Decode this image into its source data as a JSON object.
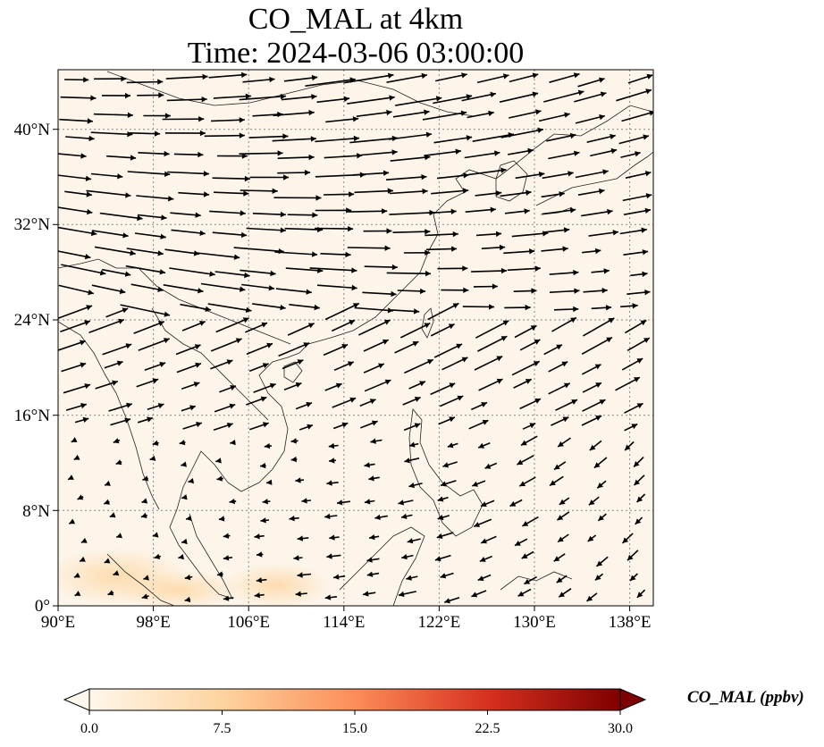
{
  "title": {
    "line1": "CO_MAL at 4km",
    "line2": "Time: 2024-03-06 03:00:00"
  },
  "map": {
    "projection": "PlateCarree",
    "lon_range": [
      90,
      140
    ],
    "lat_range": [
      0,
      45
    ],
    "lon_ticks": [
      "90°E",
      "98°E",
      "106°E",
      "114°E",
      "122°E",
      "130°E",
      "138°E"
    ],
    "lat_ticks": [
      "0°",
      "8°N",
      "16°N",
      "24°N",
      "32°N",
      "40°N"
    ],
    "gridlines": true,
    "background_color": "#fdf5ea",
    "wind_vectors": true
  },
  "colorbar": {
    "label": "CO_MAL (ppbv)",
    "min": 0.0,
    "max": 30.0,
    "ticks": [
      "0.0",
      "7.5",
      "15.0",
      "22.5",
      "30.0"
    ],
    "colormap": "OrRd",
    "extend": "both",
    "colors": [
      "#fff7ec",
      "#fdd49e",
      "#fc8d59",
      "#d7301f",
      "#7f0000"
    ]
  }
}
